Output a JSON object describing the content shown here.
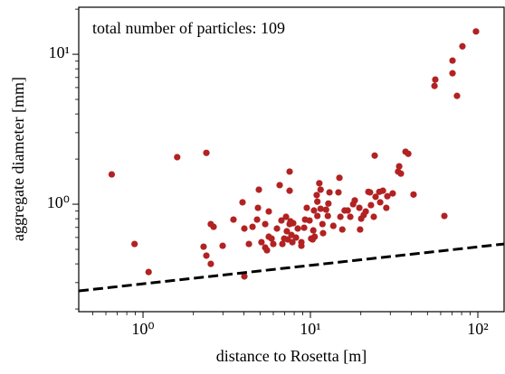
{
  "chart_data": {
    "type": "scatter",
    "annotation": "total number of particles: 109",
    "xlabel": "distance to Rosetta [m]",
    "ylabel": "aggregate diameter [mm]",
    "xscale": "log",
    "yscale": "log",
    "xlim": [
      0.413,
      143.5
    ],
    "ylim": [
      0.192,
      20.6
    ],
    "xticks": [
      {
        "value": 1,
        "label": "10⁰"
      },
      {
        "value": 10,
        "label": "10¹"
      },
      {
        "value": 100,
        "label": "10²"
      }
    ],
    "yticks": [
      {
        "value": 1,
        "label": "10⁰"
      },
      {
        "value": 10,
        "label": "10¹"
      }
    ],
    "xminorticks": [
      0.5,
      0.6,
      0.7,
      0.8,
      0.9,
      2,
      3,
      4,
      5,
      6,
      7,
      8,
      9,
      20,
      30,
      40,
      50,
      60,
      70,
      80,
      90
    ],
    "yminorticks": [
      0.2,
      0.3,
      0.4,
      0.5,
      0.6,
      0.7,
      0.8,
      0.9,
      2,
      3,
      4,
      5,
      6,
      7,
      8,
      9,
      20
    ],
    "series": [
      {
        "color": "#b22222",
        "marker": "dot",
        "x": [
          0.65,
          0.89,
          1.08,
          1.6,
          2.39,
          2.3,
          2.39,
          2.54,
          2.54,
          2.64,
          2.99,
          3.47,
          3.93,
          4.03,
          4.03,
          4.29,
          4.51,
          4.8,
          4.86,
          4.92,
          5.1,
          5.37,
          5.37,
          5.5,
          5.64,
          5.64,
          5.86,
          6.0,
          6.31,
          6.55,
          6.71,
          6.8,
          6.97,
          7.15,
          7.23,
          7.32,
          7.51,
          7.51,
          7.51,
          7.6,
          7.7,
          7.8,
          7.89,
          8.2,
          8.4,
          8.83,
          8.83,
          9.17,
          9.29,
          9.51,
          9.88,
          10.1,
          10.3,
          10.4,
          10.5,
          10.6,
          10.9,
          11.0,
          11.0,
          11.3,
          11.5,
          11.5,
          11.8,
          11.9,
          12.4,
          12.7,
          12.8,
          13.0,
          13.7,
          14.7,
          14.9,
          15.1,
          15.5,
          16.0,
          16.7,
          17.3,
          18.0,
          18.4,
          19.6,
          19.8,
          20.1,
          20.8,
          21.4,
          22.2,
          22.7,
          23.0,
          23.9,
          24.2,
          24.5,
          25.8,
          26.1,
          27.1,
          28.4,
          28.8,
          31.0,
          33.4,
          33.9,
          34.7,
          37.0,
          38.4,
          41.3,
          55.1,
          55.7,
          63.1,
          70.6,
          70.6,
          75.1,
          80.9,
          97.5
        ],
        "values": [
          1.58,
          0.543,
          0.353,
          2.06,
          2.2,
          0.521,
          0.454,
          0.4,
          0.737,
          0.707,
          0.528,
          0.79,
          1.03,
          0.33,
          0.688,
          0.543,
          0.707,
          0.79,
          0.946,
          1.25,
          0.558,
          0.514,
          0.737,
          0.493,
          0.607,
          0.895,
          0.59,
          0.543,
          0.688,
          1.34,
          0.779,
          0.543,
          0.59,
          0.824,
          0.66,
          0.582,
          1.23,
          1.65,
          0.737,
          0.769,
          0.624,
          0.558,
          0.747,
          0.599,
          0.688,
          0.558,
          0.528,
          0.697,
          0.79,
          0.946,
          0.779,
          0.59,
          0.582,
          0.669,
          0.908,
          0.607,
          1.15,
          1.04,
          0.835,
          1.38,
          1.25,
          0.933,
          0.737,
          0.641,
          0.92,
          0.835,
          1.01,
          1.2,
          0.717,
          1.2,
          1.5,
          0.824,
          0.678,
          0.908,
          0.908,
          0.824,
          1.0,
          1.06,
          0.946,
          0.678,
          0.801,
          0.847,
          0.895,
          1.21,
          1.2,
          0.986,
          0.824,
          2.11,
          1.12,
          1.21,
          1.03,
          1.23,
          0.946,
          1.13,
          1.18,
          1.65,
          1.79,
          1.6,
          2.24,
          2.17,
          1.16,
          6.15,
          6.78,
          0.835,
          7.47,
          9.08,
          5.28,
          11.3,
          14.2
        ]
      },
      {
        "color": "#000000",
        "marker": "dashed-line",
        "x": [
          0.413,
          143.5
        ],
        "values": [
          0.264,
          0.543
        ]
      }
    ]
  }
}
